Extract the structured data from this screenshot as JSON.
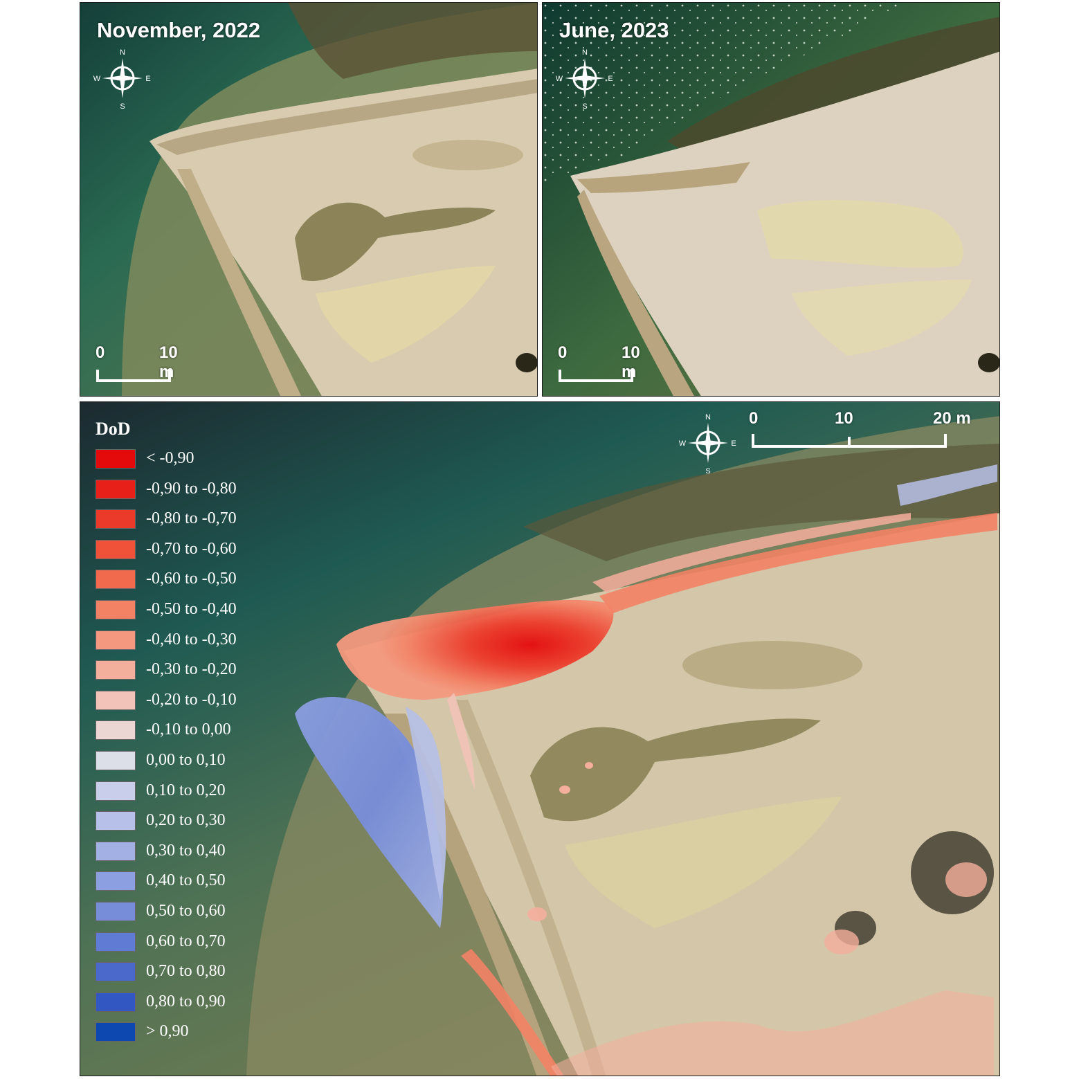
{
  "panels": {
    "top_left": {
      "title": "November, 2022",
      "scalebar": {
        "start": "0",
        "end": "10 m"
      }
    },
    "top_right": {
      "title": "June, 2023",
      "scalebar": {
        "start": "0",
        "end": "10 m"
      }
    },
    "bottom": {
      "scalebar": {
        "start": "0",
        "mid": "10",
        "end": "20 m"
      }
    }
  },
  "compass": {
    "n": "N",
    "s": "S",
    "e": "E",
    "w": "W"
  },
  "legend": {
    "title": "DoD",
    "items": [
      {
        "label": "< -0,90",
        "color": "#e4090b"
      },
      {
        "label": "-0,90 to -0,80",
        "color": "#e8201a"
      },
      {
        "label": "-0,80 to -0,70",
        "color": "#ec3a2a"
      },
      {
        "label": "-0,70 to -0,60",
        "color": "#ef5238"
      },
      {
        "label": "-0,60 to -0,50",
        "color": "#f16a4d"
      },
      {
        "label": "-0,50 to -0,40",
        "color": "#f38265"
      },
      {
        "label": "-0,40 to -0,30",
        "color": "#f4997f"
      },
      {
        "label": "-0,30 to -0,20",
        "color": "#f4ae9c"
      },
      {
        "label": "-0,20 to -0,10",
        "color": "#f2c3b8"
      },
      {
        "label": "-0,10 to 0,00",
        "color": "#ecd6d3"
      },
      {
        "label": "0,00 to 0,10",
        "color": "#dddfe8"
      },
      {
        "label": "0,10 to 0,20",
        "color": "#c9cfea"
      },
      {
        "label": "0,20 to 0,30",
        "color": "#b6c0e8"
      },
      {
        "label": "0,30 to 0,40",
        "color": "#a2b0e4"
      },
      {
        "label": "0,40 to 0,50",
        "color": "#8c9fe0"
      },
      {
        "label": "0,50 to 0,60",
        "color": "#778dda"
      },
      {
        "label": "0,60 to 0,70",
        "color": "#607bd3"
      },
      {
        "label": "0,70 to 0,80",
        "color": "#4a69cb"
      },
      {
        "label": "0,80 to 0,90",
        "color": "#3357c2"
      },
      {
        "label": "> 0,90",
        "color": "#0d47b0"
      }
    ]
  },
  "colors": {
    "water_deep": "#1f3f3c",
    "water_shallow": "#6b7a4a",
    "sand": "#d9ccb2",
    "erosion": "#e4090b",
    "deposition": "#0d47b0"
  }
}
